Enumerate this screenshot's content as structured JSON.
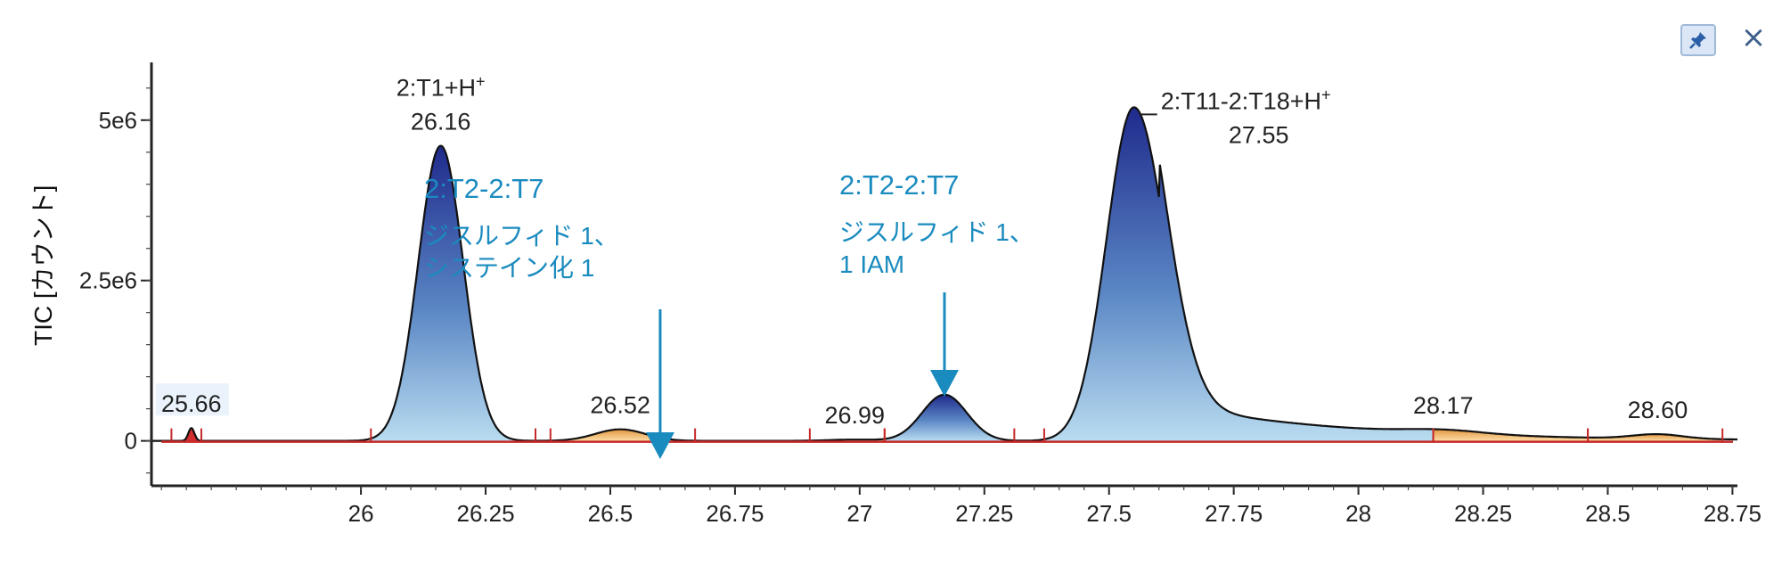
{
  "window": {
    "pin_icon": "pin-icon",
    "close_label": "×"
  },
  "chart_data": {
    "type": "area",
    "ylabel": "TIC [カウント]",
    "xlabel": "",
    "xlim": [
      25.58,
      28.76
    ],
    "ylim": [
      -700000,
      5900000
    ],
    "x_ticks": [
      26,
      26.25,
      26.5,
      26.75,
      27,
      27.25,
      27.5,
      27.75,
      28,
      28.25,
      28.5,
      28.75
    ],
    "x_tick_labels": [
      "26",
      "26.25",
      "26.5",
      "26.75",
      "27",
      "27.25",
      "27.5",
      "27.75",
      "28",
      "28.25",
      "28.5",
      "28.75"
    ],
    "y_ticks": [
      0,
      2500000,
      5000000
    ],
    "y_tick_labels": [
      "0",
      "2.5e6",
      "5e6"
    ],
    "peaks": [
      {
        "rt": 25.66,
        "label": "25.66",
        "height": 200000,
        "sigma": 0.006,
        "style": "baseline",
        "range": [
          25.62,
          25.68
        ]
      },
      {
        "rt": 26.16,
        "label": "26.16",
        "compound": "2:T1+H",
        "charge": "+",
        "height": 4600000,
        "sigma": 0.045,
        "style": "major",
        "range": [
          26.02,
          26.35
        ]
      },
      {
        "rt": 26.52,
        "label": "26.52",
        "height": 180000,
        "sigma": 0.05,
        "style": "minor",
        "range": [
          26.38,
          26.67
        ]
      },
      {
        "rt": 26.99,
        "label": "26.99",
        "height": 20000,
        "sigma": 0.05,
        "style": "minor",
        "range": [
          26.9,
          27.05
        ]
      },
      {
        "rt": 27.17,
        "label": "",
        "height": 720000,
        "sigma": 0.045,
        "style": "major",
        "range": [
          27.05,
          27.31
        ]
      },
      {
        "rt": 27.55,
        "label": "27.55",
        "compound": "2:T11-2:T18+H",
        "charge": "+",
        "height": 5200000,
        "sigma": 0.055,
        "style": "major",
        "range": [
          27.37,
          28.15
        ]
      },
      {
        "rt": 28.17,
        "label": "28.17",
        "height": 60000,
        "sigma": 0.08,
        "style": "minor",
        "range": [
          28.15,
          28.46
        ]
      },
      {
        "rt": 28.6,
        "label": "28.60",
        "height": 70000,
        "sigma": 0.05,
        "style": "minor",
        "range": [
          28.46,
          28.73
        ]
      }
    ],
    "annotations": [
      {
        "title": "2:T2-2:T7",
        "line1": "ジスルフィド 1、",
        "line2": "システイン化 1",
        "arrow_x": 26.6,
        "arrow_y": 0
      },
      {
        "title": "2:T2-2:T7",
        "line1": "ジスルフィド 1、",
        "line2": "1 IAM",
        "arrow_x": 27.17,
        "arrow_y": 850000
      }
    ]
  }
}
